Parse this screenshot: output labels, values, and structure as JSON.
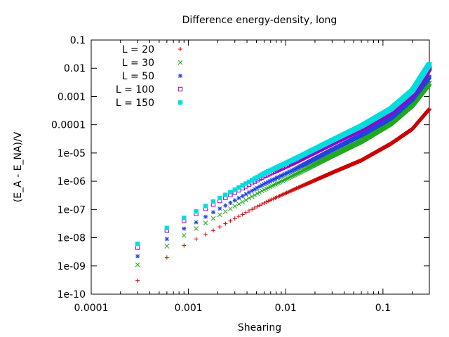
{
  "chart_data": {
    "type": "scatter",
    "title": "Difference energy-density, long",
    "xlabel": "Shearing",
    "ylabel": "(E_A - E_NA)/V",
    "xscale": "log",
    "yscale": "log",
    "xlim": [
      0.0001,
      0.3
    ],
    "ylim": [
      1e-10,
      0.1
    ],
    "grid": false,
    "legend_position": "top-left",
    "x_ticks": [
      {
        "value": 0.0001,
        "label": "0.0001"
      },
      {
        "value": 0.001,
        "label": "0.001"
      },
      {
        "value": 0.01,
        "label": "0.01"
      },
      {
        "value": 0.1,
        "label": "0.1"
      }
    ],
    "y_ticks": [
      {
        "value": 1e-10,
        "label": "1e-10"
      },
      {
        "value": 1e-09,
        "label": "1e-09"
      },
      {
        "value": 1e-08,
        "label": "1e-08"
      },
      {
        "value": 1e-07,
        "label": "1e-07"
      },
      {
        "value": 1e-06,
        "label": "1e-06"
      },
      {
        "value": 1e-05,
        "label": "1e-05"
      },
      {
        "value": 0.0001,
        "label": "0.0001"
      },
      {
        "value": 0.001,
        "label": "0.001"
      },
      {
        "value": 0.01,
        "label": "0.01"
      },
      {
        "value": 0.1,
        "label": "0.1"
      }
    ],
    "x_spacing": 0.0003,
    "series": [
      {
        "name": "L = 20",
        "color": "#cc0000",
        "marker": "plus",
        "x": [
          0.0003,
          0.0006,
          0.0009,
          0.0012,
          0.0018,
          0.003,
          0.006,
          0.012,
          0.03,
          0.06,
          0.12,
          0.2,
          0.3
        ],
        "y": [
          3e-10,
          2e-09,
          5.3e-09,
          9e-09,
          1.8e-08,
          4.8e-08,
          1.7e-07,
          5e-07,
          2e-06,
          5.5e-06,
          2.1e-05,
          7e-05,
          0.00036
        ]
      },
      {
        "name": "L = 30",
        "color": "#22aa22",
        "marker": "cross",
        "x": [
          0.0003,
          0.0006,
          0.0009,
          0.0012,
          0.0018,
          0.003,
          0.006,
          0.012,
          0.03,
          0.06,
          0.12,
          0.2,
          0.3
        ],
        "y": [
          1.1e-09,
          5e-09,
          1.2e-08,
          2.1e-08,
          4.8e-08,
          1.3e-07,
          5e-07,
          1.6e-06,
          8e-06,
          2.6e-05,
          0.00011,
          0.0005,
          0.003
        ]
      },
      {
        "name": "L = 50",
        "color": "#2244dd",
        "marker": "asterisk",
        "x": [
          0.0003,
          0.0006,
          0.0009,
          0.0012,
          0.0018,
          0.003,
          0.006,
          0.012,
          0.03,
          0.06,
          0.12,
          0.2,
          0.3
        ],
        "y": [
          2.2e-09,
          9e-09,
          2.1e-08,
          3.5e-08,
          8e-08,
          2.1e-07,
          8e-07,
          2.5e-06,
          1.3e-05,
          4.3e-05,
          0.00017,
          0.0008,
          0.005
        ]
      },
      {
        "name": "L = 100",
        "color": "#9900cc",
        "marker": "square-open",
        "x": [
          0.0003,
          0.0006,
          0.0009,
          0.0012,
          0.0018,
          0.003,
          0.006,
          0.012,
          0.03,
          0.06,
          0.12,
          0.2,
          0.3
        ],
        "y": [
          4.5e-09,
          1.8e-08,
          4e-08,
          7e-08,
          1.5e-07,
          4e-07,
          1.5e-06,
          4.5e-06,
          2.2e-05,
          7e-05,
          0.00028,
          0.0012,
          0.01
        ]
      },
      {
        "name": "L = 150",
        "color": "#00dddd",
        "marker": "square-filled",
        "x": [
          0.0003,
          0.0006,
          0.0009,
          0.0012,
          0.0018,
          0.003,
          0.006,
          0.012,
          0.03,
          0.06,
          0.12,
          0.2,
          0.3
        ],
        "y": [
          6e-09,
          2.2e-08,
          5e-08,
          8.5e-08,
          1.9e-07,
          5e-07,
          1.9e-06,
          5.8e-06,
          2.8e-05,
          9e-05,
          0.00036,
          0.0016,
          0.014
        ]
      }
    ]
  }
}
